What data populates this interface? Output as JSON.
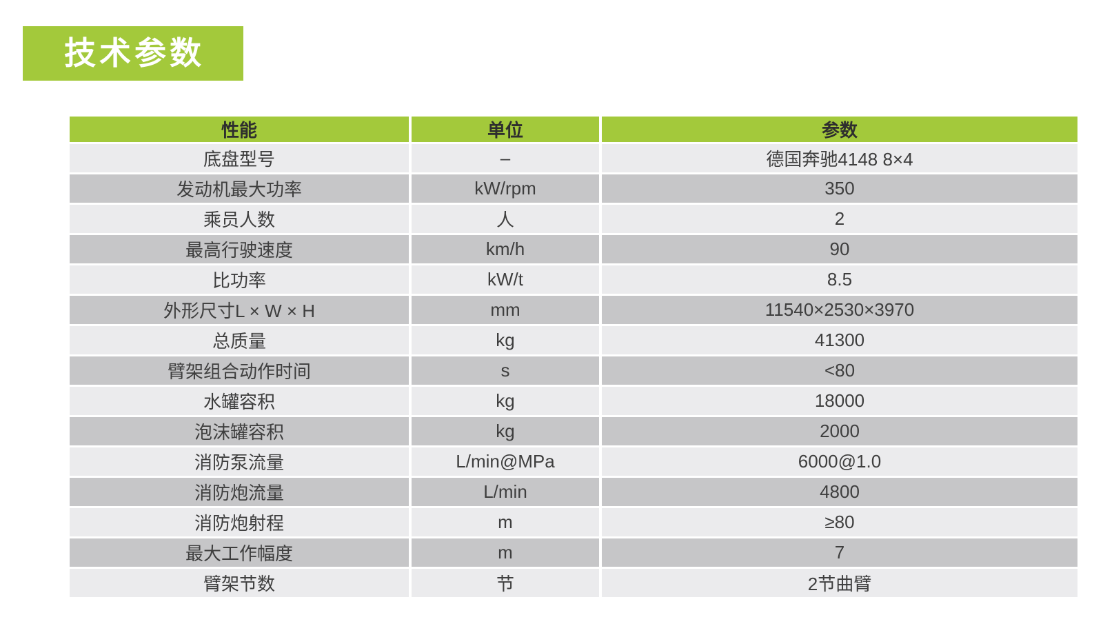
{
  "page": {
    "background_color": "#ffffff",
    "accent_green": "#a3c93b",
    "row_light_color": "#ebebed",
    "row_dark_color": "#c6c6c8"
  },
  "title_badge": {
    "label": "技术参数"
  },
  "table": {
    "headers": [
      "性能",
      "单位",
      "参数"
    ],
    "rows": [
      {
        "label": "底盘型号",
        "unit": "–",
        "value": "德国奔驰4148 8×4"
      },
      {
        "label": "发动机最大功率",
        "unit": "kW/rpm",
        "value": "350"
      },
      {
        "label": "乘员人数",
        "unit": "人",
        "value": "2"
      },
      {
        "label": "最高行驶速度",
        "unit": "km/h",
        "value": "90"
      },
      {
        "label": "比功率",
        "unit": "kW/t",
        "value": "8.5"
      },
      {
        "label": "外形尺寸L × W × H",
        "unit": "mm",
        "value": "11540×2530×3970"
      },
      {
        "label": "总质量",
        "unit": "kg",
        "value": "41300"
      },
      {
        "label": "臂架组合动作时间",
        "unit": "s",
        "value": "<80"
      },
      {
        "label": "水罐容积",
        "unit": "kg",
        "value": "18000"
      },
      {
        "label": "泡沫罐容积",
        "unit": "kg",
        "value": "2000"
      },
      {
        "label": "消防泵流量",
        "unit": "L/min@MPa",
        "value": "6000@1.0"
      },
      {
        "label": "消防炮流量",
        "unit": "L/min",
        "value": "4800"
      },
      {
        "label": "消防炮射程",
        "unit": "m",
        "value": "≥80"
      },
      {
        "label": "最大工作幅度",
        "unit": "m",
        "value": "7"
      },
      {
        "label": "臂架节数",
        "unit": "节",
        "value": "2节曲臂"
      }
    ]
  }
}
